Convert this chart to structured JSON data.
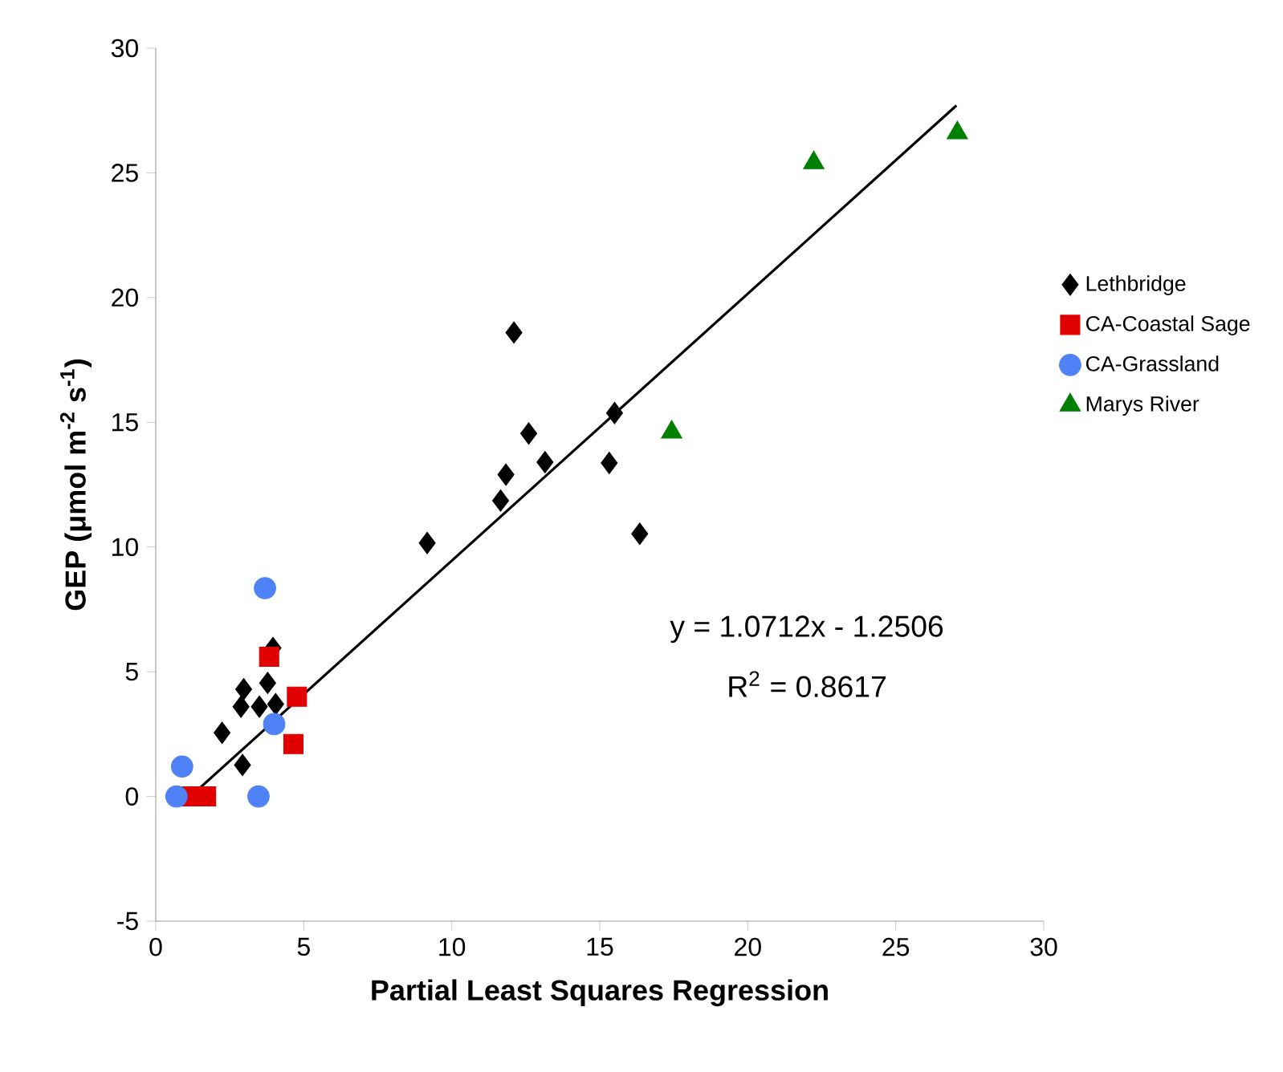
{
  "chart_data": {
    "type": "scatter",
    "xlabel": "Partial Least Squares Regression",
    "ylabel": "GEP (μmol m$^{-2}$ s$^{-1}$)",
    "xlim": [
      0,
      30
    ],
    "ylim": [
      -5,
      30
    ],
    "xticks": [
      0,
      5,
      10,
      15,
      20,
      25,
      30
    ],
    "yticks": [
      -5,
      0,
      5,
      10,
      15,
      20,
      25,
      30
    ],
    "grid": false,
    "legend": "right",
    "annotations": [
      "y = 1.0712x - 1.2506",
      "R$^{2}$ = 0.8617"
    ],
    "series": [
      {
        "name": "Lethbridge",
        "color": "#000000",
        "marker": "diamond",
        "x": [
          3.96,
          2.97,
          3.78,
          2.88,
          3.5,
          4.05,
          2.24,
          2.93,
          9.17,
          12.1,
          12.6,
          11.83,
          11.65,
          13.15,
          15.5,
          15.32,
          16.35
        ],
        "values": [
          5.95,
          4.3,
          4.55,
          3.6,
          3.6,
          3.7,
          2.55,
          1.26,
          10.16,
          18.6,
          14.55,
          12.9,
          11.86,
          13.4,
          15.37,
          13.37,
          10.53
        ]
      },
      {
        "name": "CA-Coastal Sage",
        "color": "#e00000",
        "marker": "square",
        "x": [
          3.83,
          4.77,
          4.65,
          1.2,
          1.7
        ],
        "values": [
          5.6,
          4.0,
          2.1,
          0.0,
          0.0
        ]
      },
      {
        "name": "CA-Grassland",
        "color": "#4f81f7",
        "marker": "circle",
        "x": [
          3.69,
          0.89,
          0.7,
          3.47,
          4.0
        ],
        "values": [
          8.35,
          1.2,
          0.0,
          0.0,
          2.9
        ]
      },
      {
        "name": "Marys River",
        "color": "#008000",
        "marker": "triangle",
        "x": [
          17.43,
          22.23,
          27.08
        ],
        "values": [
          14.6,
          25.4,
          26.6
        ]
      },
      {
        "type": "line",
        "color": "#000000",
        "marker": "none",
        "line_style": "solid",
        "x": [
          1.17,
          27.05
        ],
        "values": [
          0.0,
          27.7
        ]
      }
    ]
  }
}
